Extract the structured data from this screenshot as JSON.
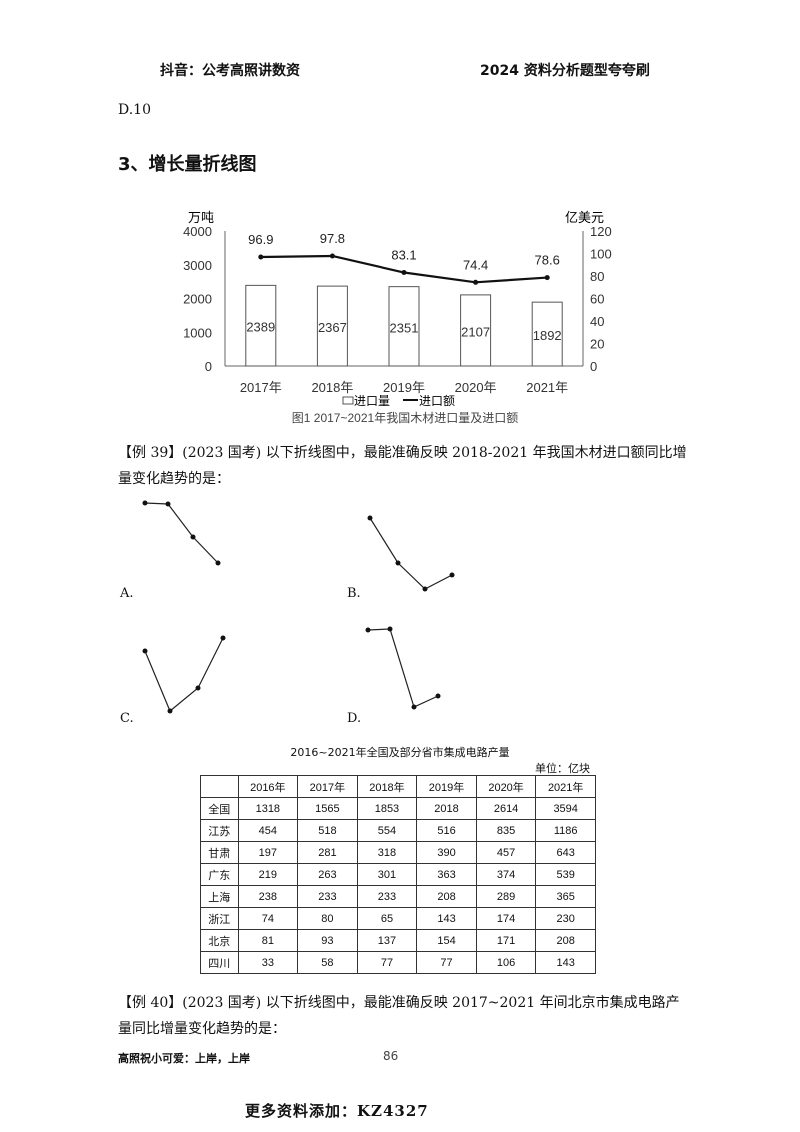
{
  "header": {
    "left": "抖音：公考高照讲数资",
    "right": "2024 资料分析题型夸夸刷"
  },
  "prev_option": "D.10",
  "section_title": "3、增长量折线图",
  "chart_data": {
    "type": "bar+line",
    "categories": [
      "2017年",
      "2018年",
      "2019年",
      "2020年",
      "2021年"
    ],
    "left_unit": "万吨",
    "right_unit": "亿美元",
    "left_ticks": [
      "0",
      "1000",
      "2000",
      "3000",
      "4000"
    ],
    "right_ticks": [
      "0",
      "20",
      "40",
      "60",
      "80",
      "100",
      "120"
    ],
    "left_ylim": [
      0,
      4000
    ],
    "right_ylim": [
      0,
      120
    ],
    "series": [
      {
        "name": "进口量",
        "kind": "bar",
        "values": [
          2389,
          2367,
          2351,
          2107,
          1892
        ],
        "labels": [
          "2389",
          "2367",
          "2351",
          "2107",
          "1892"
        ]
      },
      {
        "name": "进口额",
        "kind": "line",
        "values": [
          96.9,
          97.8,
          83.1,
          74.4,
          78.6
        ],
        "labels": [
          "96.9",
          "97.8",
          "83.1",
          "74.4",
          "78.6"
        ]
      }
    ],
    "caption": "图1  2017~2021年我国木材进口量及进口额",
    "legend_position": "bottom"
  },
  "q39": {
    "text": "【例 39】(2023 国考) 以下折线图中，最能准确反映 2018-2021 年我国木材进口额同比增量变化趋势的是：",
    "options": [
      "A.",
      "B.",
      "C.",
      "D."
    ]
  },
  "table": {
    "title": "2016~2021年全国及部分省市集成电路产量",
    "unit": "单位：亿块",
    "headers": [
      "",
      "2016年",
      "2017年",
      "2018年",
      "2019年",
      "2020年",
      "2021年"
    ],
    "rows": [
      [
        "全国",
        "1318",
        "1565",
        "1853",
        "2018",
        "2614",
        "3594"
      ],
      [
        "江苏",
        "454",
        "518",
        "554",
        "516",
        "835",
        "1186"
      ],
      [
        "甘肃",
        "197",
        "281",
        "318",
        "390",
        "457",
        "643"
      ],
      [
        "广东",
        "219",
        "263",
        "301",
        "363",
        "374",
        "539"
      ],
      [
        "上海",
        "238",
        "233",
        "233",
        "208",
        "289",
        "365"
      ],
      [
        "浙江",
        "74",
        "80",
        "65",
        "143",
        "174",
        "230"
      ],
      [
        "北京",
        "81",
        "93",
        "137",
        "154",
        "171",
        "208"
      ],
      [
        "四川",
        "33",
        "58",
        "77",
        "77",
        "106",
        "143"
      ]
    ]
  },
  "q40": {
    "text": "【例 40】(2023 国考) 以下折线图中，最能准确反映 2017~2021 年间北京市集成电路产量同比增量变化趋势的是："
  },
  "footer": {
    "left": "高照祝小可爱：上岸，上岸",
    "page": "86",
    "watermark": "更多资料添加：KZ4327"
  }
}
